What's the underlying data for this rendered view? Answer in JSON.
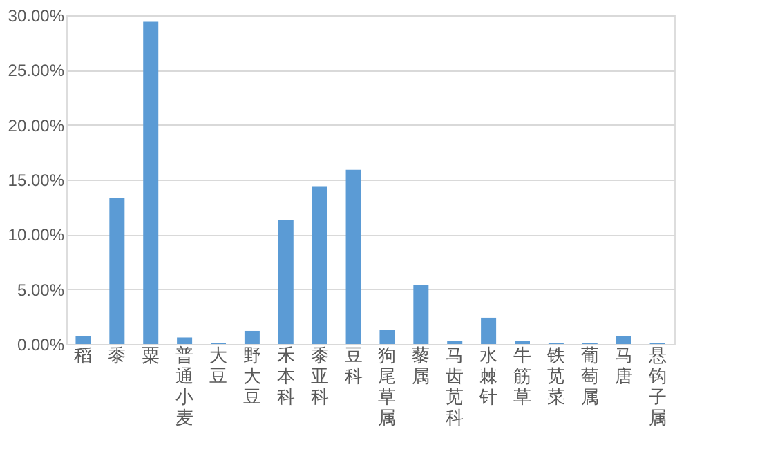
{
  "chart_data": {
    "type": "bar",
    "categories": [
      "稻",
      "黍",
      "粟",
      "普通小麦",
      "大豆",
      "野大豆",
      "禾本科",
      "黍亚科",
      "豆科",
      "狗尾草属",
      "藜属",
      "马齿苋科",
      "水棘针",
      "牛筋草",
      "铁苋菜",
      "葡萄属",
      "马唐",
      "悬钩子属"
    ],
    "values": [
      0.7,
      13.3,
      29.4,
      0.6,
      0.1,
      1.2,
      11.3,
      14.4,
      15.9,
      1.3,
      5.4,
      0.3,
      2.4,
      0.3,
      0.1,
      0.1,
      0.7,
      0.1
    ],
    "color": "#5b9bd5",
    "ylim": [
      0,
      30
    ],
    "yticks": [
      {
        "value": 0,
        "label": "0.00%"
      },
      {
        "value": 5,
        "label": "5.00%"
      },
      {
        "value": 10,
        "label": "10.00%"
      },
      {
        "value": 15,
        "label": "15.00%"
      },
      {
        "value": 20,
        "label": "20.00%"
      },
      {
        "value": 25,
        "label": "25.00%"
      },
      {
        "value": 30,
        "label": "30.00%"
      }
    ],
    "grid": "y"
  }
}
